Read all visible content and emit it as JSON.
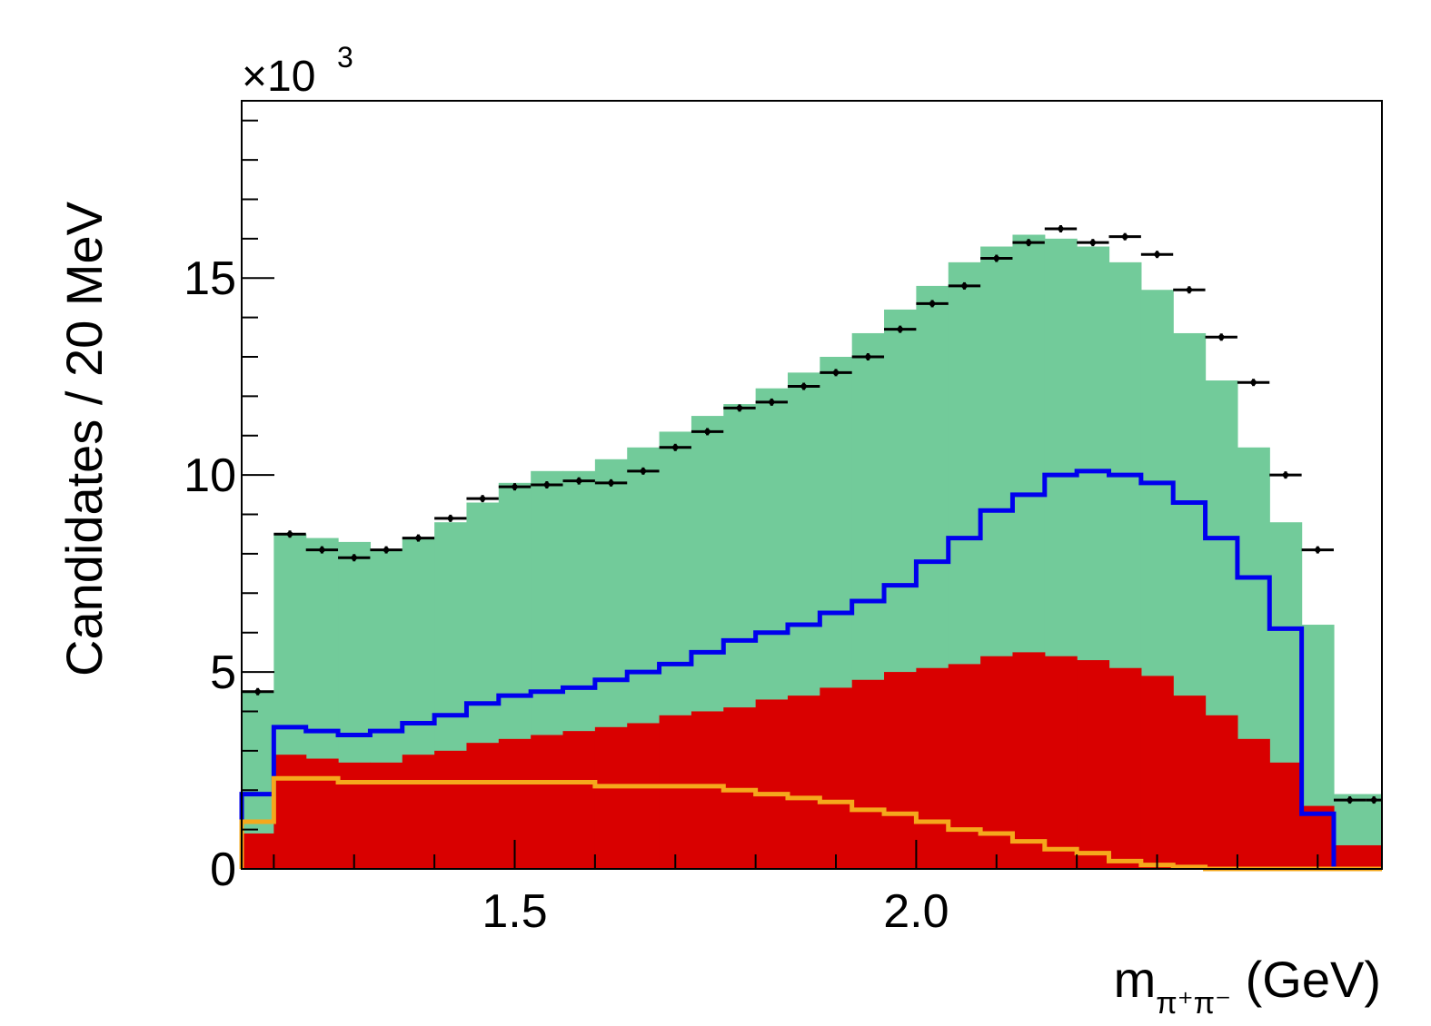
{
  "chart_data": {
    "type": "bar",
    "title": "",
    "multiplier": {
      "base": "×10",
      "exponent": "3"
    },
    "ylabel": "Candidates  / 20 MeV",
    "xlabel": {
      "main": "m",
      "sub": "π⁺π⁻",
      "unit": " (GeV)"
    },
    "xlim": [
      1.16,
      2.58
    ],
    "ylim": [
      0,
      19.5
    ],
    "x_ticks": [
      {
        "value": 1.5,
        "label": "1.5"
      },
      {
        "value": 2.0,
        "label": "2.0"
      }
    ],
    "y_ticks": [
      {
        "value": 0,
        "label": "0"
      },
      {
        "value": 5,
        "label": "5"
      },
      {
        "value": 10,
        "label": "10"
      },
      {
        "value": 15,
        "label": "15"
      }
    ],
    "x_minor_step": 0.1,
    "y_minor_step": 1,
    "grid": false,
    "legend": "none",
    "bin_edges": [
      1.16,
      1.2,
      1.24,
      1.28,
      1.32,
      1.36,
      1.4,
      1.44,
      1.48,
      1.52,
      1.56,
      1.6,
      1.64,
      1.68,
      1.72,
      1.76,
      1.8,
      1.84,
      1.88,
      1.92,
      1.96,
      2.0,
      2.04,
      2.08,
      2.12,
      2.16,
      2.2,
      2.24,
      2.28,
      2.32,
      2.36,
      2.4,
      2.44,
      2.48,
      2.52,
      2.56,
      2.58
    ],
    "series": [
      {
        "key": "green-stack",
        "style": "filled",
        "color": "#72CB9A",
        "values": [
          4.5,
          8.5,
          8.4,
          8.3,
          8.1,
          8.4,
          8.8,
          9.3,
          9.8,
          10.1,
          10.1,
          10.4,
          10.7,
          11.1,
          11.5,
          11.8,
          12.2,
          12.6,
          13.0,
          13.6,
          14.2,
          14.8,
          15.4,
          15.8,
          16.1,
          16.0,
          15.8,
          15.4,
          14.7,
          13.6,
          12.4,
          10.7,
          8.8,
          6.2,
          1.9,
          1.9
        ]
      },
      {
        "key": "red-stack",
        "style": "filled",
        "color": "#D90000",
        "values": [
          0.9,
          2.9,
          2.8,
          2.7,
          2.7,
          2.9,
          3.0,
          3.2,
          3.3,
          3.4,
          3.5,
          3.6,
          3.7,
          3.9,
          4.0,
          4.1,
          4.3,
          4.4,
          4.6,
          4.8,
          5.0,
          5.1,
          5.2,
          5.4,
          5.5,
          5.4,
          5.3,
          5.1,
          4.9,
          4.4,
          3.9,
          3.3,
          2.7,
          1.6,
          0.6,
          0.6
        ]
      },
      {
        "key": "blue-line",
        "style": "step",
        "color": "#0000EE",
        "values": [
          1.9,
          3.6,
          3.5,
          3.4,
          3.5,
          3.7,
          3.9,
          4.2,
          4.4,
          4.5,
          4.6,
          4.8,
          5.0,
          5.2,
          5.5,
          5.8,
          6.0,
          6.2,
          6.5,
          6.8,
          7.2,
          7.8,
          8.4,
          9.1,
          9.5,
          10.0,
          10.1,
          10.0,
          9.8,
          9.3,
          8.4,
          7.4,
          6.1,
          1.4,
          0.0,
          0.0
        ]
      },
      {
        "key": "orange-line",
        "style": "step",
        "color": "#F5A81C",
        "values": [
          1.2,
          2.3,
          2.3,
          2.2,
          2.2,
          2.2,
          2.2,
          2.2,
          2.2,
          2.2,
          2.2,
          2.1,
          2.1,
          2.1,
          2.1,
          2.0,
          1.9,
          1.8,
          1.7,
          1.5,
          1.4,
          1.2,
          1.0,
          0.9,
          0.7,
          0.5,
          0.4,
          0.2,
          0.1,
          0.05,
          0.0,
          0.0,
          0.0,
          0.0,
          0.0,
          0.0
        ]
      },
      {
        "key": "data-points",
        "style": "errorbar",
        "color": "#000000",
        "values": [
          4.5,
          8.5,
          8.1,
          7.9,
          8.1,
          8.4,
          8.9,
          9.4,
          9.7,
          9.75,
          9.85,
          9.8,
          10.1,
          10.7,
          11.1,
          11.7,
          11.85,
          12.25,
          12.6,
          13.0,
          13.7,
          14.35,
          14.8,
          15.5,
          15.9,
          16.25,
          15.9,
          16.05,
          15.6,
          14.7,
          13.5,
          12.35,
          10.0,
          8.1,
          1.75,
          1.75
        ]
      }
    ]
  }
}
